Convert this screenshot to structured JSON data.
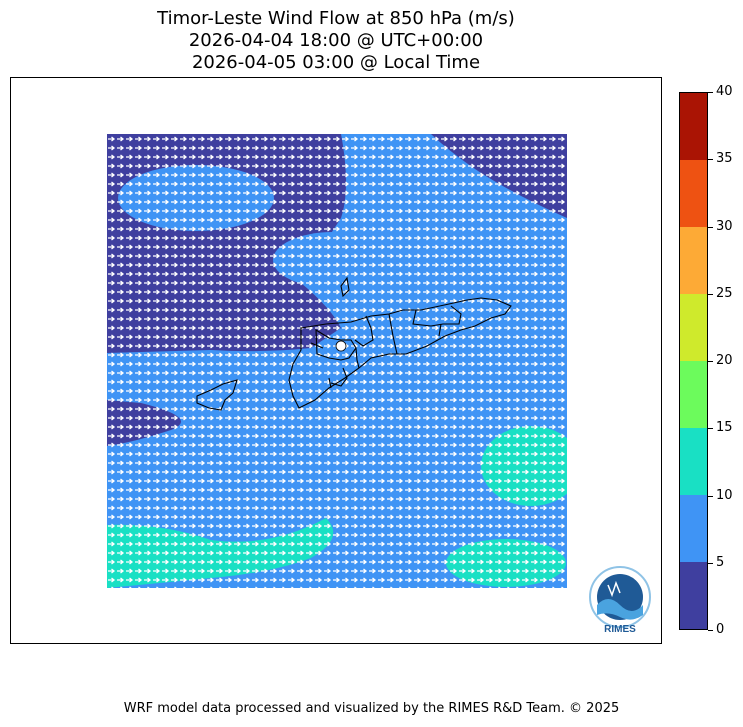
{
  "title": {
    "line1": "Timor-Leste Wind Flow at 850 hPa (m/s)",
    "line2": "2026-04-04 18:00 @ UTC+00:00",
    "line3": "2026-04-05 03:00 @ Local Time"
  },
  "colorbar": {
    "ticks": [
      "0",
      "5",
      "10",
      "15",
      "20",
      "25",
      "30",
      "35",
      "40"
    ],
    "bins": [
      {
        "from": 0,
        "to": 5,
        "color": "#3f3f9f"
      },
      {
        "from": 5,
        "to": 10,
        "color": "#3f94f5"
      },
      {
        "from": 10,
        "to": 15,
        "color": "#19e0c4"
      },
      {
        "from": 15,
        "to": 20,
        "color": "#6cfb5c"
      },
      {
        "from": 20,
        "to": 25,
        "color": "#cfea2c"
      },
      {
        "from": 25,
        "to": 30,
        "color": "#fdaa36"
      },
      {
        "from": 30,
        "to": 35,
        "color": "#ee5212"
      },
      {
        "from": 35,
        "to": 40,
        "color": "#aa1404"
      }
    ]
  },
  "logo": {
    "text": "RIMES"
  },
  "footer": "WRF model data processed and visualized by the RIMES R&D Team. © 2025"
}
